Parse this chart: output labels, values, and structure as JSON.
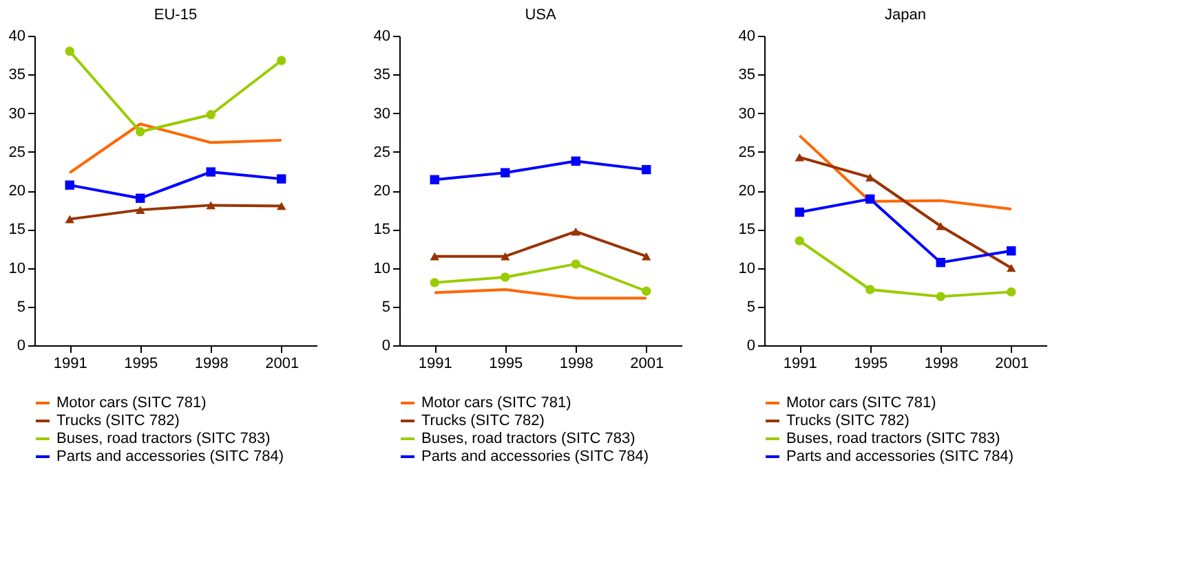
{
  "chart_data": [
    {
      "type": "line",
      "title": "EU-15",
      "categories": [
        "1991",
        "1995",
        "1998",
        "2001"
      ],
      "ylim": [
        0,
        40
      ],
      "yticks": [
        0,
        5,
        10,
        15,
        20,
        25,
        30,
        35,
        40
      ],
      "grid": false,
      "legend": "bottom",
      "series": [
        {
          "name": "Motor cars (SITC 781)",
          "color": "#ff6600",
          "marker": "none",
          "values": [
            22.3,
            28.6,
            26.2,
            26.5
          ]
        },
        {
          "name": "Trucks (SITC 782)",
          "color": "#993300",
          "marker": "triangle",
          "values": [
            16.3,
            17.5,
            18.1,
            18.0
          ]
        },
        {
          "name": "Buses, road tractors (SITC 783)",
          "color": "#99cc00",
          "marker": "circle",
          "values": [
            38.0,
            27.6,
            29.8,
            36.8
          ]
        },
        {
          "name": "Parts and accessories (SITC 784)",
          "color": "#0000ff",
          "marker": "square",
          "values": [
            20.7,
            19.0,
            22.4,
            21.5
          ]
        }
      ]
    },
    {
      "type": "line",
      "title": "USA",
      "categories": [
        "1991",
        "1995",
        "1998",
        "2001"
      ],
      "ylim": [
        0,
        40
      ],
      "yticks": [
        0,
        5,
        10,
        15,
        20,
        25,
        30,
        35,
        40
      ],
      "grid": false,
      "legend": "bottom",
      "series": [
        {
          "name": "Motor cars (SITC 781)",
          "color": "#ff6600",
          "marker": "none",
          "values": [
            6.8,
            7.2,
            6.1,
            6.1
          ]
        },
        {
          "name": "Trucks (SITC 782)",
          "color": "#993300",
          "marker": "triangle",
          "values": [
            11.5,
            11.5,
            14.7,
            11.5
          ]
        },
        {
          "name": "Buses, road tractors (SITC 783)",
          "color": "#99cc00",
          "marker": "circle",
          "values": [
            8.1,
            8.8,
            10.5,
            7.0
          ]
        },
        {
          "name": "Parts and accessories (SITC 784)",
          "color": "#0000ff",
          "marker": "square",
          "values": [
            21.4,
            22.3,
            23.8,
            22.7
          ]
        }
      ]
    },
    {
      "type": "line",
      "title": "Japan",
      "categories": [
        "1991",
        "1995",
        "1998",
        "2001"
      ],
      "ylim": [
        0,
        40
      ],
      "yticks": [
        0,
        5,
        10,
        15,
        20,
        25,
        30,
        35,
        40
      ],
      "grid": false,
      "legend": "bottom",
      "series": [
        {
          "name": "Motor cars (SITC 781)",
          "color": "#ff6600",
          "marker": "none",
          "values": [
            27.1,
            18.6,
            18.7,
            17.6
          ]
        },
        {
          "name": "Trucks (SITC 782)",
          "color": "#993300",
          "marker": "triangle",
          "values": [
            24.3,
            21.7,
            15.4,
            10.0
          ]
        },
        {
          "name": "Buses, road tractors (SITC 783)",
          "color": "#99cc00",
          "marker": "circle",
          "values": [
            13.5,
            7.2,
            6.3,
            6.9
          ]
        },
        {
          "name": "Parts and accessories (SITC 784)",
          "color": "#0000ff",
          "marker": "square",
          "values": [
            17.2,
            18.9,
            10.7,
            12.2
          ]
        }
      ]
    }
  ]
}
